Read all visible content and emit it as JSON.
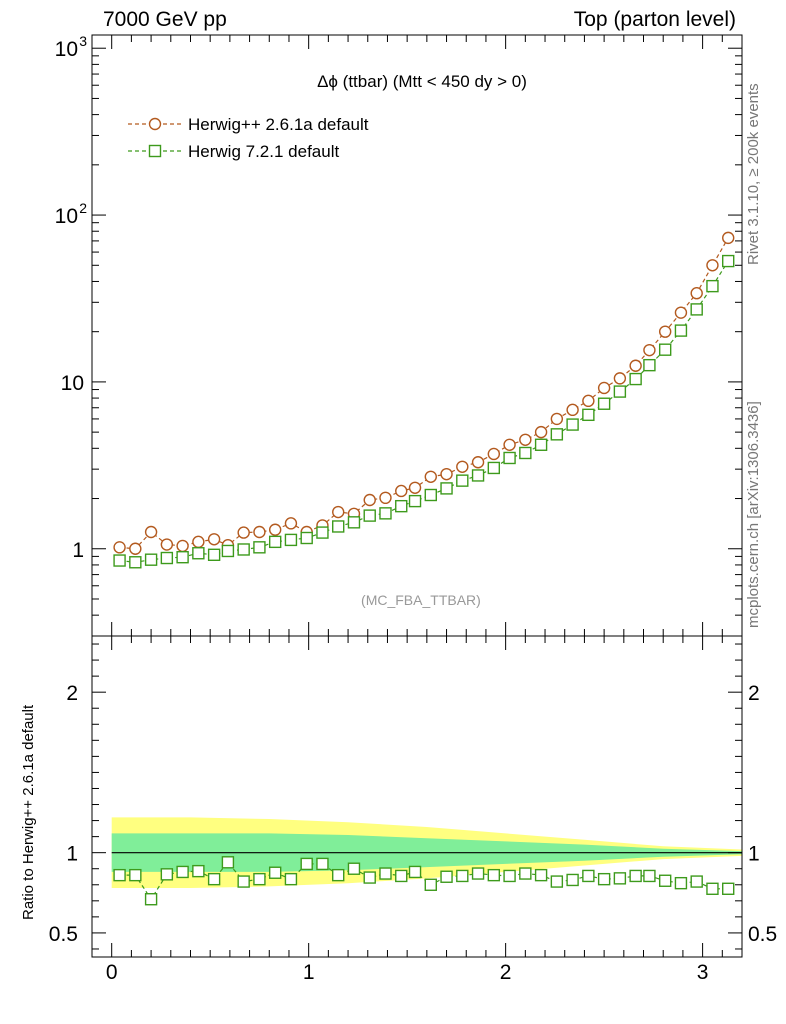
{
  "header": {
    "left": "7000 GeV pp",
    "right": "Top (parton level)"
  },
  "side_labels": {
    "top": "Rivet 3.1.10, ≥ 200k events",
    "bottom": "mcplots.cern.ch [arXiv:1306.3436]"
  },
  "colors": {
    "herwig_pp": "#b35a1f",
    "herwig7": "#3d9a1c",
    "band_outer": "#ffff80",
    "band_inner": "#80ee99"
  },
  "chart_data": [
    {
      "type": "line",
      "title": "Δϕ (ttbar) (Mtt < 450 dy > 0)",
      "watermark": "(MC_FBA_TTBAR)",
      "yscale": "log",
      "ylim": [
        0.3,
        1200
      ],
      "xlim": [
        -0.1,
        3.2
      ],
      "ytick_labels": [
        "1",
        "10",
        "10^2",
        "10^3"
      ],
      "legend_position": "top-left",
      "x": [
        0.04,
        0.12,
        0.2,
        0.28,
        0.36,
        0.44,
        0.52,
        0.59,
        0.67,
        0.75,
        0.83,
        0.91,
        0.99,
        1.07,
        1.15,
        1.23,
        1.31,
        1.39,
        1.47,
        1.54,
        1.62,
        1.7,
        1.78,
        1.86,
        1.94,
        2.02,
        2.1,
        2.18,
        2.26,
        2.34,
        2.42,
        2.5,
        2.58,
        2.66,
        2.73,
        2.81,
        2.89,
        2.97,
        3.05,
        3.13
      ],
      "series": [
        {
          "name": "Herwig++ 2.6.1a default",
          "marker": "circle",
          "values": [
            1.02,
            1.0,
            1.26,
            1.06,
            1.04,
            1.1,
            1.14,
            1.05,
            1.25,
            1.26,
            1.3,
            1.42,
            1.26,
            1.38,
            1.66,
            1.62,
            1.96,
            2.02,
            2.22,
            2.32,
            2.7,
            2.8,
            3.1,
            3.3,
            3.7,
            4.2,
            4.5,
            5.0,
            6.0,
            6.8,
            7.7,
            9.2,
            10.5,
            12.5,
            15.5,
            20.0,
            26.0,
            34.0,
            50.0,
            73.0
          ]
        },
        {
          "name": "Herwig 7.2.1 default",
          "marker": "square",
          "values": [
            0.85,
            0.83,
            0.86,
            0.88,
            0.89,
            0.94,
            0.92,
            0.97,
            0.99,
            1.02,
            1.1,
            1.13,
            1.16,
            1.25,
            1.36,
            1.44,
            1.58,
            1.63,
            1.8,
            1.93,
            2.1,
            2.3,
            2.56,
            2.75,
            3.05,
            3.5,
            3.75,
            4.2,
            4.85,
            5.55,
            6.35,
            7.4,
            8.75,
            10.4,
            12.6,
            15.6,
            20.3,
            27.2,
            37.5,
            53.0
          ]
        }
      ]
    },
    {
      "type": "line",
      "ylabel": "Ratio to Herwig++ 2.6.1a default",
      "ylim": [
        0.35,
        2.35
      ],
      "xlim": [
        -0.1,
        3.2
      ],
      "ytick_labels": [
        "0.5",
        "1",
        "2"
      ],
      "xtick_labels": [
        "0",
        "1",
        "2",
        "3"
      ],
      "x": [
        0.04,
        0.12,
        0.2,
        0.28,
        0.36,
        0.44,
        0.52,
        0.59,
        0.67,
        0.75,
        0.83,
        0.91,
        0.99,
        1.07,
        1.15,
        1.23,
        1.31,
        1.39,
        1.47,
        1.54,
        1.62,
        1.7,
        1.78,
        1.86,
        1.94,
        2.02,
        2.1,
        2.18,
        2.26,
        2.34,
        2.42,
        2.5,
        2.58,
        2.66,
        2.73,
        2.81,
        2.89,
        2.97,
        3.05,
        3.13
      ],
      "reference": {
        "name": "Herwig++ 2.6.1a default",
        "value": 1.0,
        "band_x": [
          0.0,
          0.4,
          0.8,
          1.2,
          1.6,
          2.0,
          2.4,
          2.8,
          3.2
        ],
        "band_outer": [
          0.22,
          0.22,
          0.21,
          0.19,
          0.16,
          0.12,
          0.08,
          0.04,
          0.02
        ],
        "band_inner": [
          0.12,
          0.12,
          0.12,
          0.11,
          0.09,
          0.07,
          0.05,
          0.025,
          0.01
        ]
      },
      "series": [
        {
          "name": "Herwig 7.2.1 default",
          "marker": "square",
          "values": [
            0.86,
            0.86,
            0.71,
            0.865,
            0.88,
            0.885,
            0.835,
            0.94,
            0.82,
            0.835,
            0.875,
            0.835,
            0.93,
            0.93,
            0.86,
            0.9,
            0.845,
            0.87,
            0.855,
            0.88,
            0.8,
            0.85,
            0.855,
            0.87,
            0.86,
            0.855,
            0.87,
            0.86,
            0.82,
            0.83,
            0.855,
            0.835,
            0.84,
            0.855,
            0.855,
            0.825,
            0.81,
            0.82,
            0.775,
            0.775
          ]
        }
      ]
    }
  ]
}
